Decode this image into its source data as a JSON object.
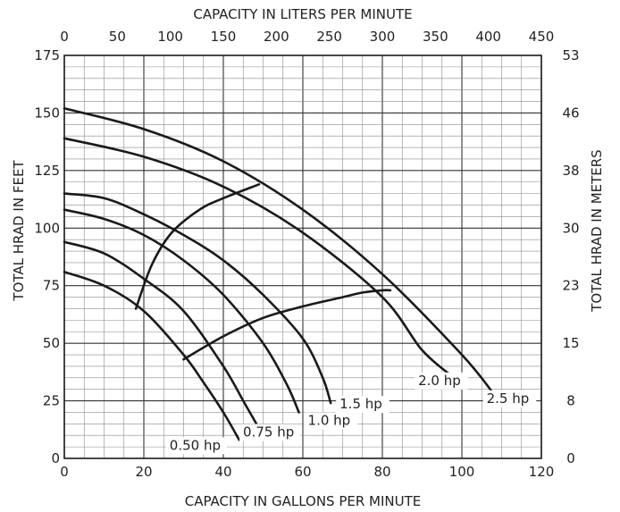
{
  "chart_data": {
    "type": "line",
    "xlabel": "CAPACITY IN GALLONS PER MINUTE",
    "x2label": "CAPACITY IN LITERS PER MINUTE",
    "ylabel": "TOTAL HRAD IN FEET",
    "y2label": "TOTAL HRAD IN METERS",
    "xlim": [
      0,
      120
    ],
    "ylim": [
      0,
      175
    ],
    "x2lim": [
      0,
      450
    ],
    "x_ticks": [
      0,
      20,
      40,
      60,
      80,
      100,
      120
    ],
    "y_ticks": [
      0,
      25,
      50,
      75,
      100,
      125,
      150,
      175
    ],
    "x2_ticks": [
      0,
      50,
      100,
      150,
      200,
      250,
      300,
      350,
      400,
      450
    ],
    "y2_ticks": [
      {
        "label": "0",
        "value": 0
      },
      {
        "label": "8",
        "value": 25
      },
      {
        "label": "15",
        "value": 50
      },
      {
        "label": "23",
        "value": 75
      },
      {
        "label": "30",
        "value": 100
      },
      {
        "label": "38",
        "value": 125
      },
      {
        "label": "46",
        "value": 150
      },
      {
        "label": "53",
        "value": 175
      }
    ],
    "grid": true,
    "series": [
      {
        "name": "0.50 hp",
        "x": [
          0,
          10,
          20,
          30,
          35,
          40,
          44
        ],
        "y": [
          81,
          75,
          64,
          45,
          33,
          20,
          8
        ]
      },
      {
        "name": "0.75 hp",
        "x": [
          0,
          10,
          20,
          30,
          40,
          45,
          49
        ],
        "y": [
          94,
          89,
          78,
          64,
          40,
          25,
          13
        ]
      },
      {
        "name": "1.0 hp",
        "x": [
          0,
          10,
          20,
          30,
          40,
          50,
          56,
          59
        ],
        "y": [
          108,
          104,
          97,
          86,
          71,
          50,
          32,
          20
        ]
      },
      {
        "name": "1.5 hp",
        "x": [
          0,
          10,
          20,
          30,
          40,
          50,
          60,
          65,
          67
        ],
        "y": [
          115,
          113,
          106,
          97,
          86,
          71,
          52,
          35,
          24
        ]
      },
      {
        "name": "2.0 hp",
        "x": [
          0,
          20,
          40,
          60,
          80,
          90,
          98
        ],
        "y": [
          139,
          131,
          118,
          98,
          70,
          47,
          35
        ]
      },
      {
        "name": "2.5 hp",
        "x": [
          0,
          20,
          40,
          60,
          80,
          100,
          108
        ],
        "y": [
          152,
          143,
          129,
          108,
          80,
          45,
          28
        ]
      }
    ],
    "reference_lines": [
      {
        "x": [
          18,
          22,
          27,
          34,
          40,
          49
        ],
        "y": [
          65,
          84,
          98,
          108,
          113,
          119
        ]
      },
      {
        "x": [
          30,
          40,
          50,
          60,
          70,
          75,
          80,
          82
        ],
        "y": [
          43,
          53,
          61,
          66,
          70,
          72,
          73,
          73
        ]
      }
    ]
  }
}
